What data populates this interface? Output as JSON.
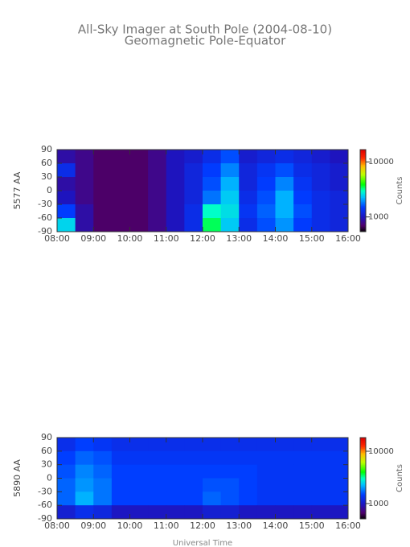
{
  "title": "All-Sky Imager at South Pole (2004-08-10)",
  "subtitle": "Geomagnetic Pole-Equator",
  "chart_data": [
    {
      "type": "heatmap",
      "ylabel": "5577 AA",
      "colorbar_label": "Counts",
      "colormap": "rainbow",
      "colorscale": "log",
      "xbins": [
        8,
        8.5,
        9,
        9.5,
        10,
        10.5,
        11,
        11.5,
        12,
        12.5,
        13,
        13.5,
        14,
        14.5,
        15,
        15.5,
        16
      ],
      "ybins": [
        90,
        60,
        30,
        0,
        -30,
        -60,
        -90
      ],
      "values": [
        [
          900,
          800,
          700,
          700,
          700,
          800,
          1000,
          1100,
          1300,
          1600,
          1100,
          1200,
          1300,
          1200,
          1100,
          1000
        ],
        [
          1300,
          800,
          700,
          700,
          700,
          800,
          1000,
          1200,
          1500,
          1900,
          1200,
          1400,
          1600,
          1300,
          1200,
          1100
        ],
        [
          900,
          800,
          700,
          700,
          700,
          800,
          1000,
          1200,
          1600,
          2200,
          1200,
          1500,
          1900,
          1400,
          1200,
          1100
        ],
        [
          1000,
          800,
          700,
          700,
          700,
          800,
          1000,
          1200,
          1800,
          2400,
          1300,
          1600,
          2200,
          1500,
          1300,
          1200
        ],
        [
          1500,
          900,
          700,
          700,
          700,
          800,
          1000,
          1300,
          3000,
          2600,
          1400,
          1700,
          2200,
          1600,
          1300,
          1200
        ],
        [
          2500,
          900,
          700,
          700,
          700,
          800,
          1000,
          1300,
          3500,
          2400,
          1300,
          1600,
          2000,
          1500,
          1300,
          1200
        ]
      ],
      "xlim": [
        8,
        16
      ],
      "xticks": [
        {
          "value": 8,
          "label": "08:00"
        },
        {
          "value": 9,
          "label": "09:00"
        },
        {
          "value": 10,
          "label": "10:00"
        },
        {
          "value": 11,
          "label": "11:00"
        },
        {
          "value": 12,
          "label": "12:00"
        },
        {
          "value": 13,
          "label": "13:00"
        },
        {
          "value": 14,
          "label": "14:00"
        },
        {
          "value": 15,
          "label": "15:00"
        },
        {
          "value": 16,
          "label": "16:00"
        }
      ],
      "ylim": [
        -90,
        90
      ],
      "yticks": [
        90,
        60,
        30,
        0,
        -30,
        -60,
        -90
      ],
      "clim": [
        540,
        16700
      ],
      "cticks": [
        10000,
        1000
      ]
    },
    {
      "type": "heatmap",
      "ylabel": "5890 AA",
      "colorbar_label": "Counts",
      "xlabel": "Universal Time",
      "colormap": "rainbow",
      "colorscale": "log",
      "xbins": [
        8,
        8.5,
        9,
        9.5,
        10,
        10.5,
        11,
        11.5,
        12,
        12.5,
        13,
        13.5,
        14,
        14.5,
        15,
        15.5,
        16
      ],
      "ybins": [
        90,
        60,
        30,
        0,
        -30,
        -60,
        -90
      ],
      "values": [
        [
          1300,
          1500,
          1400,
          1300,
          1300,
          1300,
          1300,
          1300,
          1300,
          1300,
          1300,
          1300,
          1300,
          1300,
          1300,
          1300
        ],
        [
          1500,
          1700,
          1600,
          1400,
          1400,
          1400,
          1400,
          1400,
          1400,
          1400,
          1400,
          1400,
          1400,
          1400,
          1400,
          1400
        ],
        [
          1600,
          1900,
          1700,
          1500,
          1500,
          1500,
          1500,
          1500,
          1500,
          1500,
          1500,
          1400,
          1400,
          1400,
          1400,
          1400
        ],
        [
          1700,
          2000,
          1800,
          1500,
          1500,
          1500,
          1500,
          1500,
          1600,
          1600,
          1500,
          1400,
          1400,
          1400,
          1400,
          1400
        ],
        [
          1700,
          2200,
          1800,
          1500,
          1500,
          1500,
          1500,
          1500,
          1700,
          1600,
          1500,
          1400,
          1400,
          1400,
          1400,
          1400
        ],
        [
          1100,
          1300,
          1200,
          1000,
          1000,
          1000,
          1000,
          1000,
          1100,
          1100,
          1000,
          1000,
          1000,
          1000,
          1000,
          1000
        ]
      ],
      "xlim": [
        8,
        16
      ],
      "xticks": [
        {
          "value": 8,
          "label": "08:00"
        },
        {
          "value": 9,
          "label": "09:00"
        },
        {
          "value": 10,
          "label": "10:00"
        },
        {
          "value": 11,
          "label": "11:00"
        },
        {
          "value": 12,
          "label": "12:00"
        },
        {
          "value": 13,
          "label": "13:00"
        },
        {
          "value": 14,
          "label": "14:00"
        },
        {
          "value": 15,
          "label": "15:00"
        },
        {
          "value": 16,
          "label": "16:00"
        }
      ],
      "ylim": [
        -90,
        90
      ],
      "yticks": [
        90,
        60,
        30,
        0,
        -30,
        -60,
        -90
      ],
      "clim": [
        510,
        18250
      ],
      "cticks": [
        10000,
        1000
      ]
    }
  ]
}
